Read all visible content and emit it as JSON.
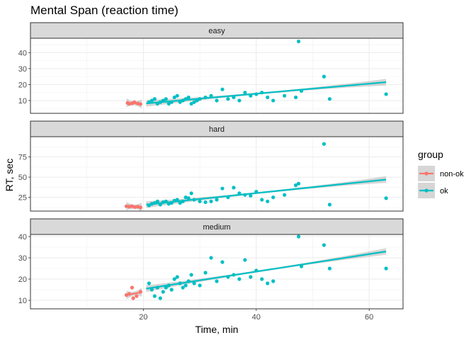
{
  "chart_data": {
    "type": "scatter",
    "title": "Mental Span (reaction time)",
    "xlabel": "Time, min",
    "ylabel": "RT, sec",
    "xlim": [
      0,
      66
    ],
    "x_ticks": [
      20,
      40,
      60
    ],
    "grid": true,
    "legend": {
      "title": "group",
      "position": "right",
      "entries": [
        {
          "label": "non-ok",
          "color": "#F8766D"
        },
        {
          "label": "ok",
          "color": "#00BFC4"
        }
      ]
    },
    "colors": {
      "non-ok": "#F8766D",
      "ok": "#00BFC4",
      "ribbon": "#999999",
      "strip": "#D9D9D9"
    },
    "panels": [
      {
        "label": "easy",
        "ylim": [
          2,
          49
        ],
        "y_ticks": [
          10,
          20,
          30,
          40
        ],
        "series": [
          {
            "name": "non-ok",
            "points": [
              [
                17.2,
                8.5
              ],
              [
                17.5,
                8.0
              ],
              [
                18.0,
                8.3
              ],
              [
                18.4,
                9.0
              ],
              [
                19.0,
                8.2
              ],
              [
                19.5,
                7.8
              ]
            ],
            "fit": {
              "x": [
                17,
                19.7
              ],
              "y": [
                8.6,
                7.9
              ]
            }
          },
          {
            "name": "ok",
            "points": [
              [
                21.0,
                9
              ],
              [
                21.5,
                10
              ],
              [
                22,
                11
              ],
              [
                22.5,
                8
              ],
              [
                23,
                9
              ],
              [
                23.5,
                10
              ],
              [
                24,
                11
              ],
              [
                24.5,
                8
              ],
              [
                25,
                9
              ],
              [
                25.5,
                12
              ],
              [
                26,
                13
              ],
              [
                26.5,
                9
              ],
              [
                27,
                10
              ],
              [
                27.5,
                11
              ],
              [
                28,
                12
              ],
              [
                28.5,
                8
              ],
              [
                29,
                9
              ],
              [
                29.5,
                10
              ],
              [
                30,
                11
              ],
              [
                31,
                12
              ],
              [
                32,
                13
              ],
              [
                33,
                10
              ],
              [
                34,
                17
              ],
              [
                35,
                11
              ],
              [
                36,
                12
              ],
              [
                37,
                10
              ],
              [
                38,
                15
              ],
              [
                39,
                13
              ],
              [
                40,
                14
              ],
              [
                41,
                15
              ],
              [
                42,
                12
              ],
              [
                43,
                10
              ],
              [
                45,
                13
              ],
              [
                47,
                12
              ],
              [
                48,
                16
              ],
              [
                47.5,
                47
              ],
              [
                52,
                25
              ],
              [
                53,
                11
              ],
              [
                63,
                14
              ]
            ],
            "fit": {
              "x": [
                20.5,
                63
              ],
              "y": [
                8.2,
                21.5
              ]
            }
          }
        ]
      },
      {
        "label": "hard",
        "ylim": [
          8,
          100
        ],
        "y_ticks": [
          25,
          50,
          75
        ],
        "series": [
          {
            "name": "non-ok",
            "points": [
              [
                17.0,
                14
              ],
              [
                17.5,
                13.5
              ],
              [
                18.0,
                14
              ],
              [
                18.5,
                13
              ],
              [
                19.0,
                13.5
              ],
              [
                19.5,
                12.5
              ]
            ],
            "fit": {
              "x": [
                17,
                19.7
              ],
              "y": [
                14,
                13
              ]
            }
          },
          {
            "name": "ok",
            "points": [
              [
                21,
                15
              ],
              [
                21.5,
                17
              ],
              [
                22,
                18
              ],
              [
                22.5,
                20
              ],
              [
                23,
                16
              ],
              [
                23.5,
                19
              ],
              [
                24,
                20
              ],
              [
                24.5,
                17
              ],
              [
                25,
                18
              ],
              [
                25.5,
                21
              ],
              [
                26,
                22
              ],
              [
                26.5,
                18
              ],
              [
                27,
                20
              ],
              [
                27.5,
                25
              ],
              [
                28,
                24
              ],
              [
                28.5,
                30
              ],
              [
                29,
                22
              ],
              [
                30,
                20
              ],
              [
                31,
                19
              ],
              [
                32,
                20
              ],
              [
                33,
                22
              ],
              [
                34,
                36
              ],
              [
                35,
                25
              ],
              [
                36,
                37
              ],
              [
                37,
                30
              ],
              [
                38,
                28
              ],
              [
                39,
                27
              ],
              [
                40,
                32
              ],
              [
                41,
                22
              ],
              [
                42,
                20
              ],
              [
                43,
                25
              ],
              [
                45,
                28
              ],
              [
                47,
                40
              ],
              [
                47.5,
                42
              ],
              [
                52,
                91
              ],
              [
                53,
                16
              ],
              [
                63,
                24
              ]
            ],
            "fit": {
              "x": [
                20.5,
                63
              ],
              "y": [
                16,
                47
              ]
            }
          }
        ]
      },
      {
        "label": "medium",
        "ylim": [
          6,
          41
        ],
        "y_ticks": [
          10,
          20,
          30,
          40
        ],
        "series": [
          {
            "name": "non-ok",
            "points": [
              [
                17.0,
                12.5
              ],
              [
                17.5,
                13
              ],
              [
                18.0,
                16
              ],
              [
                18.2,
                11
              ],
              [
                18.8,
                12
              ],
              [
                19.5,
                14
              ]
            ],
            "fit": {
              "x": [
                17,
                19.7
              ],
              "y": [
                12.5,
                13.8
              ]
            }
          },
          {
            "name": "ok",
            "points": [
              [
                21,
                18
              ],
              [
                21.5,
                15
              ],
              [
                22,
                12
              ],
              [
                22.5,
                16
              ],
              [
                23,
                11
              ],
              [
                23.5,
                14
              ],
              [
                24,
                16
              ],
              [
                24.5,
                17
              ],
              [
                25,
                15
              ],
              [
                25.5,
                20
              ],
              [
                26,
                21
              ],
              [
                26.5,
                18
              ],
              [
                27,
                16
              ],
              [
                27.5,
                17
              ],
              [
                28,
                19
              ],
              [
                28.5,
                22
              ],
              [
                29,
                18
              ],
              [
                30,
                17
              ],
              [
                31,
                23
              ],
              [
                32,
                30
              ],
              [
                33,
                19
              ],
              [
                34,
                28
              ],
              [
                35,
                21
              ],
              [
                36,
                22
              ],
              [
                37,
                20
              ],
              [
                38,
                29
              ],
              [
                39,
                21
              ],
              [
                40,
                24
              ],
              [
                41,
                20
              ],
              [
                42,
                18
              ],
              [
                43,
                19
              ],
              [
                47.5,
                40
              ],
              [
                48,
                26
              ],
              [
                52,
                36
              ],
              [
                53,
                25
              ],
              [
                63,
                25
              ]
            ],
            "fit": {
              "x": [
                20.5,
                63
              ],
              "y": [
                15.5,
                33
              ]
            }
          }
        ]
      }
    ]
  }
}
